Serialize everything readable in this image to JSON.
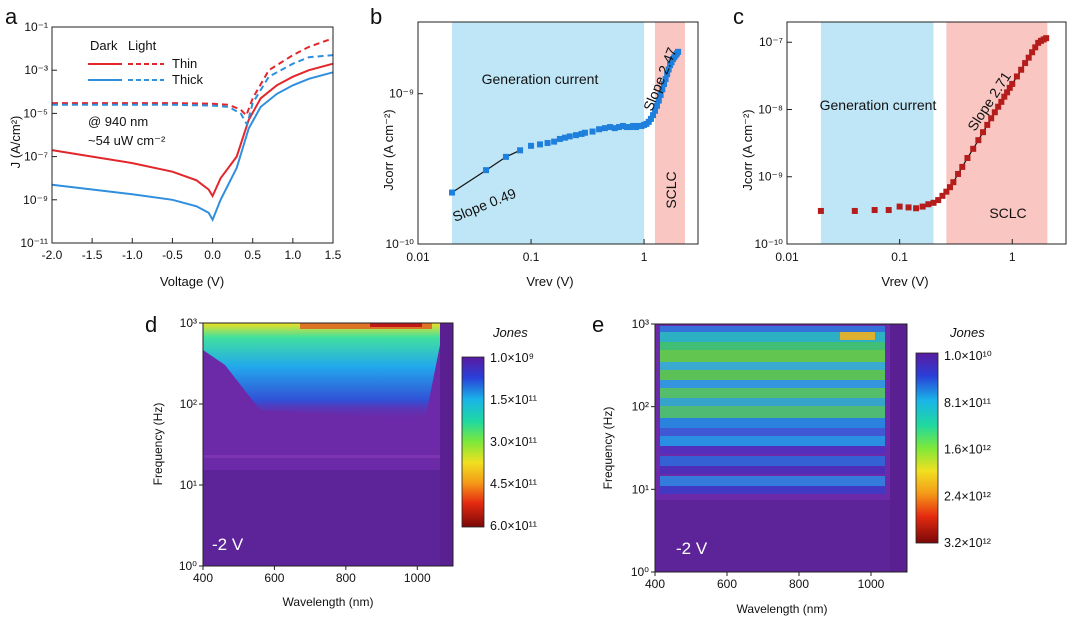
{
  "panels": {
    "a": "a",
    "b": "b",
    "c": "c",
    "d": "d",
    "e": "e"
  },
  "chart_data": [
    {
      "id": "a",
      "type": "line",
      "xlabel": "Voltage (V)",
      "ylabel": "J (A/cm²)",
      "xlim": [
        -2.0,
        1.5
      ],
      "ylim": [
        1e-11,
        0.1
      ],
      "yscale": "log",
      "xticks": [
        "-2.0",
        "-1.5",
        "-1.0",
        "-0.5",
        "0.0",
        "0.5",
        "1.0",
        "1.5"
      ],
      "yticks": [
        "10⁻¹¹",
        "10⁻⁹",
        "10⁻⁷",
        "10⁻⁵",
        "10⁻³",
        "10⁻¹"
      ],
      "legend": {
        "header_dark": "Dark",
        "header_light": "Light",
        "entries": [
          "Thin",
          "Thick"
        ],
        "position": "top-left"
      },
      "annotation": [
        "@ 940 nm",
        "~54 uW cm⁻²"
      ],
      "colors": {
        "thin": "#e3262b",
        "thick": "#2f8fde"
      },
      "series": [
        {
          "name": "Thin Dark",
          "x": [
            -2,
            -1.5,
            -1,
            -0.5,
            -0.2,
            -0.05,
            0,
            0.1,
            0.3,
            0.45,
            0.6,
            0.8,
            1,
            1.2,
            1.5
          ],
          "y": [
            2e-07,
            1e-07,
            5e-08,
            2e-08,
            8e-09,
            3e-09,
            1.5e-09,
            1e-08,
            1e-07,
            5e-06,
            5e-05,
            0.0002,
            0.0005,
            0.001,
            0.002
          ]
        },
        {
          "name": "Thick Dark",
          "x": [
            -2,
            -1.5,
            -1,
            -0.5,
            -0.2,
            -0.05,
            0,
            0.1,
            0.3,
            0.45,
            0.6,
            0.8,
            1,
            1.2,
            1.5
          ],
          "y": [
            5e-09,
            3e-09,
            1.8e-09,
            1e-09,
            5e-10,
            2.5e-10,
            1.2e-10,
            1e-09,
            3e-08,
            2e-06,
            2e-05,
            8e-05,
            0.0002,
            0.0004,
            0.0008
          ]
        },
        {
          "name": "Thin Light",
          "x": [
            -2,
            -1,
            -0.5,
            0,
            0.2,
            0.35,
            0.42,
            0.5,
            0.7,
            1,
            1.2,
            1.5
          ],
          "y": [
            3e-05,
            3e-05,
            3e-05,
            2.8e-05,
            2.5e-05,
            1.5e-05,
            8e-06,
            5e-05,
            0.001,
            0.005,
            0.012,
            0.03
          ]
        },
        {
          "name": "Thick Light",
          "x": [
            -2,
            -1,
            -0.5,
            0,
            0.2,
            0.35,
            0.43,
            0.5,
            0.7,
            1,
            1.2,
            1.5
          ],
          "y": [
            2.5e-05,
            2.5e-05,
            2.5e-05,
            2.3e-05,
            2e-05,
            1e-05,
            3e-06,
            3e-05,
            0.0005,
            0.002,
            0.004,
            0.005
          ]
        }
      ]
    },
    {
      "id": "b",
      "type": "scatter",
      "xlabel": "Vrev (V)",
      "ylabel": "Jcorr (A cm⁻²)",
      "xscale": "log",
      "yscale": "log",
      "xlim": [
        0.01,
        3
      ],
      "ylim": [
        1e-10,
        3e-09
      ],
      "xticks": [
        "0.01",
        "0.1",
        "1"
      ],
      "yticks": [
        "10⁻¹⁰",
        "10⁻⁹"
      ],
      "regions": [
        {
          "label": "Generation current",
          "from": 0.02,
          "to": 1.0,
          "color": "#bfe6f6"
        },
        {
          "label": "SCLC",
          "from": 1.25,
          "to": 2.3,
          "color": "#f9c6c2"
        }
      ],
      "fits": [
        {
          "label": "Slope 0.49",
          "from": 0.02,
          "to": 0.08
        },
        {
          "label": "Slope 2.47",
          "from": 1.3,
          "to": 2.0
        }
      ],
      "marker_color": "#1f7fdc",
      "x": [
        0.02,
        0.04,
        0.06,
        0.08,
        0.1,
        0.12,
        0.14,
        0.16,
        0.18,
        0.2,
        0.22,
        0.25,
        0.28,
        0.3,
        0.35,
        0.4,
        0.45,
        0.5,
        0.55,
        0.6,
        0.65,
        0.7,
        0.75,
        0.8,
        0.85,
        0.9,
        0.95,
        1.0,
        1.05,
        1.1,
        1.15,
        1.2,
        1.25,
        1.3,
        1.35,
        1.4,
        1.45,
        1.5,
        1.55,
        1.6,
        1.65,
        1.7,
        1.75,
        1.8,
        1.85,
        1.9,
        1.95,
        2.0
      ],
      "y": [
        2.2e-10,
        3.1e-10,
        3.8e-10,
        4.2e-10,
        4.5e-10,
        4.6e-10,
        4.7e-10,
        4.8e-10,
        5e-10,
        5.1e-10,
        5.2e-10,
        5.3e-10,
        5.4e-10,
        5.5e-10,
        5.6e-10,
        5.8e-10,
        5.9e-10,
        6e-10,
        5.9e-10,
        6e-10,
        6.1e-10,
        6e-10,
        6e-10,
        6.1e-10,
        6e-10,
        6.1e-10,
        6.1e-10,
        6.2e-10,
        6.3e-10,
        6.5e-10,
        6.8e-10,
        7.2e-10,
        7.7e-10,
        8.3e-10,
        9e-10,
        9.8e-10,
        1.07e-09,
        1.16e-09,
        1.25e-09,
        1.35e-09,
        1.45e-09,
        1.55e-09,
        1.62e-09,
        1.7e-09,
        1.75e-09,
        1.8e-09,
        1.85e-09,
        1.9e-09
      ]
    },
    {
      "id": "c",
      "type": "scatter",
      "xlabel": "Vrev (V)",
      "ylabel": "Jcorr (A cm⁻²)",
      "xscale": "log",
      "yscale": "log",
      "xlim": [
        0.01,
        3
      ],
      "ylim": [
        1e-10,
        2e-07
      ],
      "xticks": [
        "0.01",
        "0.1",
        "1"
      ],
      "yticks": [
        "10⁻¹⁰",
        "10⁻⁹",
        "10⁻⁸",
        "10⁻⁷"
      ],
      "regions": [
        {
          "label": "Generation current",
          "from": 0.02,
          "to": 0.2,
          "color": "#bfe6f6"
        },
        {
          "label": "SCLC",
          "from": 0.26,
          "to": 2.05,
          "color": "#f9c6c2"
        }
      ],
      "fits": [
        {
          "label": "Slope 2.71",
          "from": 0.3,
          "to": 2.0
        }
      ],
      "marker_color": "#b51d1d",
      "x": [
        0.02,
        0.04,
        0.06,
        0.08,
        0.1,
        0.12,
        0.14,
        0.16,
        0.18,
        0.2,
        0.22,
        0.24,
        0.26,
        0.28,
        0.3,
        0.33,
        0.36,
        0.4,
        0.45,
        0.5,
        0.55,
        0.6,
        0.65,
        0.7,
        0.75,
        0.8,
        0.85,
        0.9,
        0.95,
        1.0,
        1.1,
        1.2,
        1.3,
        1.4,
        1.5,
        1.6,
        1.7,
        1.8,
        1.9,
        2.0
      ],
      "y": [
        3.1e-10,
        3.1e-10,
        3.2e-10,
        3.2e-10,
        3.6e-10,
        3.5e-10,
        3.4e-10,
        3.6e-10,
        3.9e-10,
        4.1e-10,
        4.5e-10,
        5.2e-10,
        6e-10,
        7e-10,
        8.3e-10,
        1.1e-09,
        1.4e-09,
        1.9e-09,
        2.6e-09,
        3.5e-09,
        4.6e-09,
        5.9e-09,
        7.4e-09,
        9.1e-09,
        1.1e-08,
        1.3e-08,
        1.55e-08,
        1.8e-08,
        2.1e-08,
        2.4e-08,
        3.1e-08,
        3.9e-08,
        4.9e-08,
        5.9e-08,
        7.1e-08,
        8.4e-08,
        9.8e-08,
        1.05e-07,
        1.1e-07,
        1.15e-07
      ]
    },
    {
      "id": "d",
      "type": "heatmap",
      "xlabel": "Wavelength (nm)",
      "ylabel": "Frequency (Hz)",
      "xlim": [
        400,
        1100
      ],
      "ylim": [
        1,
        1000
      ],
      "yscale": "log",
      "xticks": [
        "400",
        "600",
        "800",
        "1000"
      ],
      "yticks": [
        "10⁰",
        "10¹",
        "10²",
        "10³"
      ],
      "bias_label": "-2 V",
      "colorbar": {
        "title": "Jones",
        "labels": [
          "1.0×10⁹",
          "1.5×10¹¹",
          "3.0×10¹¹",
          "4.5×10¹¹",
          "6.0×10¹¹"
        ]
      }
    },
    {
      "id": "e",
      "type": "heatmap",
      "xlabel": "Wavelength (nm)",
      "ylabel": "Frequency (Hz)",
      "xlim": [
        400,
        1100
      ],
      "ylim": [
        1,
        1000
      ],
      "yscale": "log",
      "xticks": [
        "400",
        "600",
        "800",
        "1000"
      ],
      "yticks": [
        "10⁰",
        "10¹",
        "10²",
        "10³"
      ],
      "bias_label": "-2 V",
      "colorbar": {
        "title": "Jones",
        "labels": [
          "1.0×10¹⁰",
          "8.1×10¹¹",
          "1.6×10¹²",
          "2.4×10¹²",
          "3.2×10¹²"
        ]
      }
    }
  ]
}
